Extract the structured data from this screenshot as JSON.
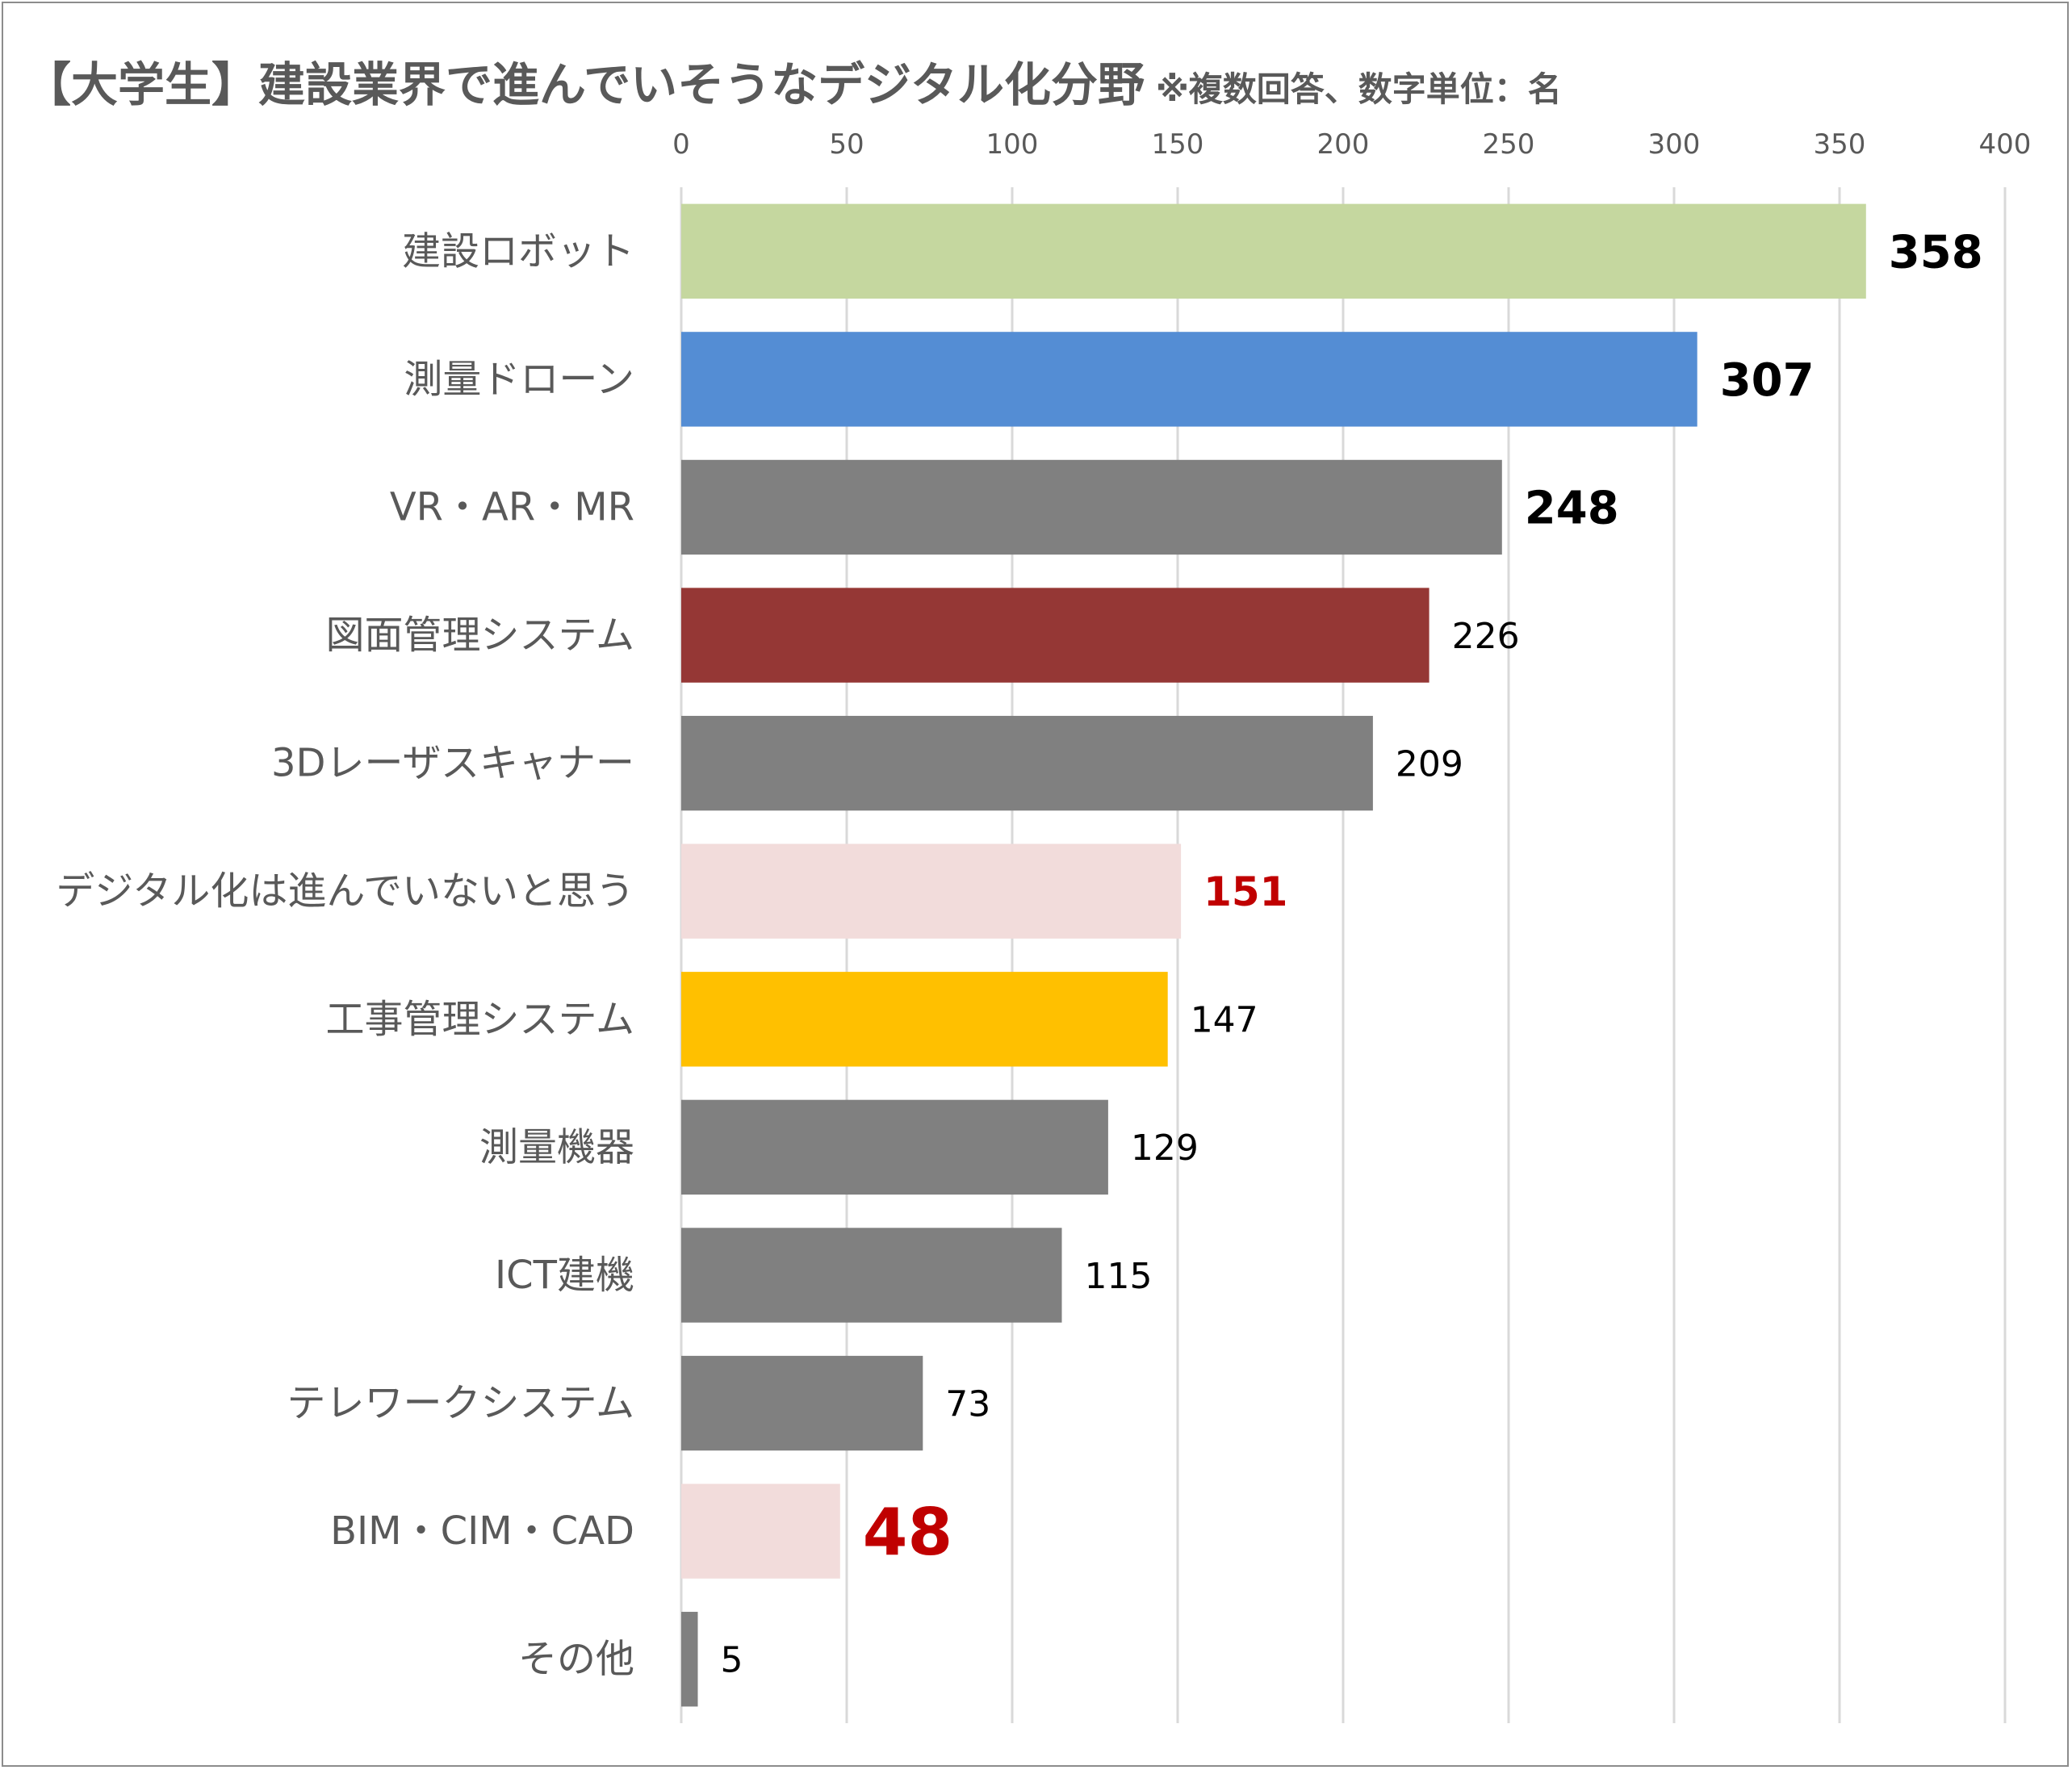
{
  "title": "【大学生】建設業界で進んでいそうなデジタル化分野",
  "subtitle": "※複数回答、数字単位：名",
  "chart_data": {
    "type": "bar",
    "orientation": "horizontal",
    "xlim": [
      0,
      400
    ],
    "ticks": [
      0,
      50,
      100,
      150,
      200,
      250,
      300,
      350,
      400
    ],
    "grid": true,
    "legend": "none",
    "categories": [
      "建設ロボット",
      "測量ドローン",
      "VR・AR・MR",
      "図面管理システム",
      "3Dレーザスキャナー",
      "デジタル化は進んでいないと思う",
      "工事管理システム",
      "測量機器",
      "ICT建機",
      "テレワークシステム",
      "BIM・CIM・CAD",
      "その他"
    ],
    "values": [
      358,
      307,
      248,
      226,
      209,
      151,
      147,
      129,
      115,
      73,
      48,
      5
    ],
    "bar_colors": [
      "#c5d79f",
      "#548dd4",
      "#808080",
      "#953735",
      "#808080",
      "#f2dcdb",
      "#ffc000",
      "#808080",
      "#808080",
      "#808080",
      "#f2dcdb",
      "#808080"
    ],
    "label_styles": [
      "bold-large",
      "bold-large",
      "bold-large",
      "normal",
      "normal",
      "bold-red",
      "normal",
      "normal",
      "normal",
      "normal",
      "bold-red-large",
      "normal"
    ]
  }
}
